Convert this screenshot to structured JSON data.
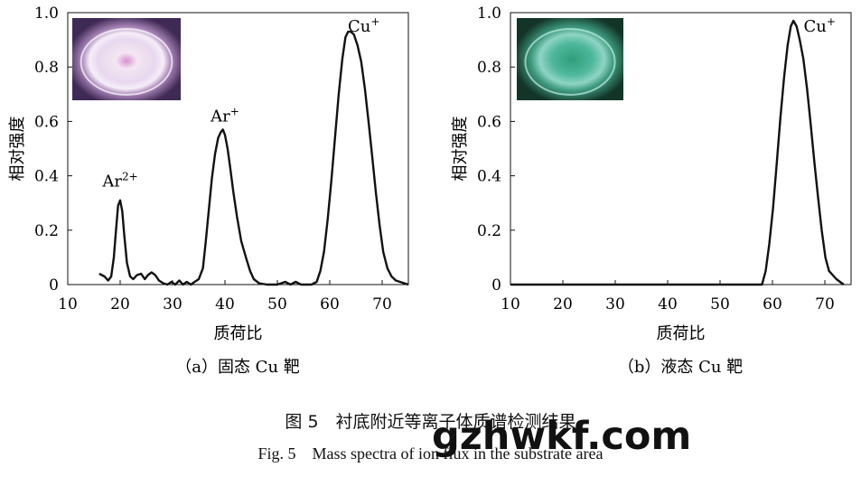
{
  "chart_data": [
    {
      "type": "line",
      "panel_label": "（a）固态 Cu 靶",
      "xlabel": "质荷比",
      "ylabel": "相对强度",
      "xlim": [
        10,
        75
      ],
      "ylim": [
        0,
        1.0
      ],
      "xticks": [
        "10",
        "20",
        "30",
        "40",
        "50",
        "60",
        "70"
      ],
      "yticks": [
        "0",
        "0.2",
        "0.4",
        "0.6",
        "0.8",
        "1.0"
      ],
      "inset": "plasma-photo-purple",
      "series": [
        {
          "x": [
            16,
            17,
            17.7,
            18.3,
            18.8,
            19.2,
            19.6,
            20,
            20.4,
            20.8,
            21.3,
            21.9,
            22.5,
            23.2,
            24,
            24.7,
            25.3,
            26,
            26.7,
            27.4,
            28.2,
            29,
            29.8,
            30.5,
            31.3,
            32,
            32.7,
            33.5,
            34.2,
            35,
            35.8,
            36.3,
            36.9,
            37.5,
            38.1,
            38.7,
            39.2,
            39.6,
            40,
            40.5,
            41,
            41.6,
            42.3,
            43.1,
            44,
            44.8,
            45.5,
            46.5,
            48,
            50,
            51.5,
            52.5,
            53.5,
            54.5,
            55.5,
            56.5,
            57.5,
            58.2,
            58.9,
            59.6,
            60.3,
            61,
            61.7,
            62.4,
            63,
            63.5,
            64,
            64.6,
            65.3,
            66,
            66.7,
            67.4,
            68.1,
            68.8,
            69.5,
            70.2,
            71,
            71.8,
            72.6,
            73.4,
            74.2,
            75
          ],
          "y": [
            0.04,
            0.03,
            0.015,
            0.03,
            0.1,
            0.2,
            0.29,
            0.31,
            0.27,
            0.18,
            0.08,
            0.03,
            0.02,
            0.035,
            0.04,
            0.02,
            0.035,
            0.045,
            0.035,
            0.015,
            0.005,
            0.0,
            0.01,
            0.0,
            0.015,
            0.0,
            0.01,
            0.0,
            0.01,
            0.02,
            0.06,
            0.15,
            0.27,
            0.39,
            0.48,
            0.54,
            0.56,
            0.57,
            0.55,
            0.5,
            0.43,
            0.34,
            0.25,
            0.16,
            0.1,
            0.05,
            0.02,
            0.005,
            0.0,
            0.0,
            0.01,
            0.0,
            0.01,
            0.0,
            0.0,
            0.0,
            0.01,
            0.05,
            0.12,
            0.24,
            0.38,
            0.54,
            0.7,
            0.83,
            0.91,
            0.93,
            0.93,
            0.92,
            0.88,
            0.82,
            0.72,
            0.6,
            0.47,
            0.34,
            0.22,
            0.12,
            0.06,
            0.03,
            0.015,
            0.01,
            0.005,
            0.0
          ]
        }
      ],
      "annotations": [
        {
          "text": "Ar",
          "sup": "2+",
          "x": 20,
          "y": 0.36
        },
        {
          "text": "Ar",
          "sup": "+",
          "x": 40,
          "y": 0.6
        },
        {
          "text": "Cu",
          "sup": "+",
          "x": 66.5,
          "y": 0.93
        }
      ]
    },
    {
      "type": "line",
      "panel_label": "（b）液态 Cu 靶",
      "xlabel": "质荷比",
      "ylabel": "相对强度",
      "xlim": [
        10,
        75
      ],
      "ylim": [
        0,
        1.0
      ],
      "xticks": [
        "10",
        "20",
        "30",
        "40",
        "50",
        "60",
        "70"
      ],
      "yticks": [
        "0",
        "0.2",
        "0.4",
        "0.6",
        "0.8",
        "1.0"
      ],
      "inset": "plasma-photo-green",
      "series": [
        {
          "x": [
            10,
            26,
            58,
            58.7,
            59.4,
            60.1,
            60.8,
            61.5,
            62.2,
            62.9,
            63.5,
            64,
            64.6,
            65.2,
            65.9,
            66.6,
            67.3,
            68,
            68.7,
            69.4,
            70.1,
            70.8,
            71.5,
            72.2,
            72.9,
            73.6
          ],
          "y": [
            0,
            0,
            0,
            0.05,
            0.15,
            0.28,
            0.44,
            0.61,
            0.76,
            0.88,
            0.95,
            0.97,
            0.95,
            0.9,
            0.83,
            0.72,
            0.59,
            0.45,
            0.32,
            0.2,
            0.1,
            0.05,
            0.035,
            0.02,
            0.01,
            0.0
          ]
        }
      ],
      "annotations": [
        {
          "text": "Cu",
          "sup": "+",
          "x": 69,
          "y": 0.93
        }
      ]
    }
  ],
  "caption_cn": "图 5　衬底附近等离子体质谱检测结果",
  "caption_en": "Fig. 5　Mass spectra of ion flux in the substrate area",
  "watermark": "gzhwkf.com",
  "colors": {
    "line": "#111111",
    "inset_a_bg": "#6b4a7e",
    "inset_b_bg": "#1e4a38"
  }
}
